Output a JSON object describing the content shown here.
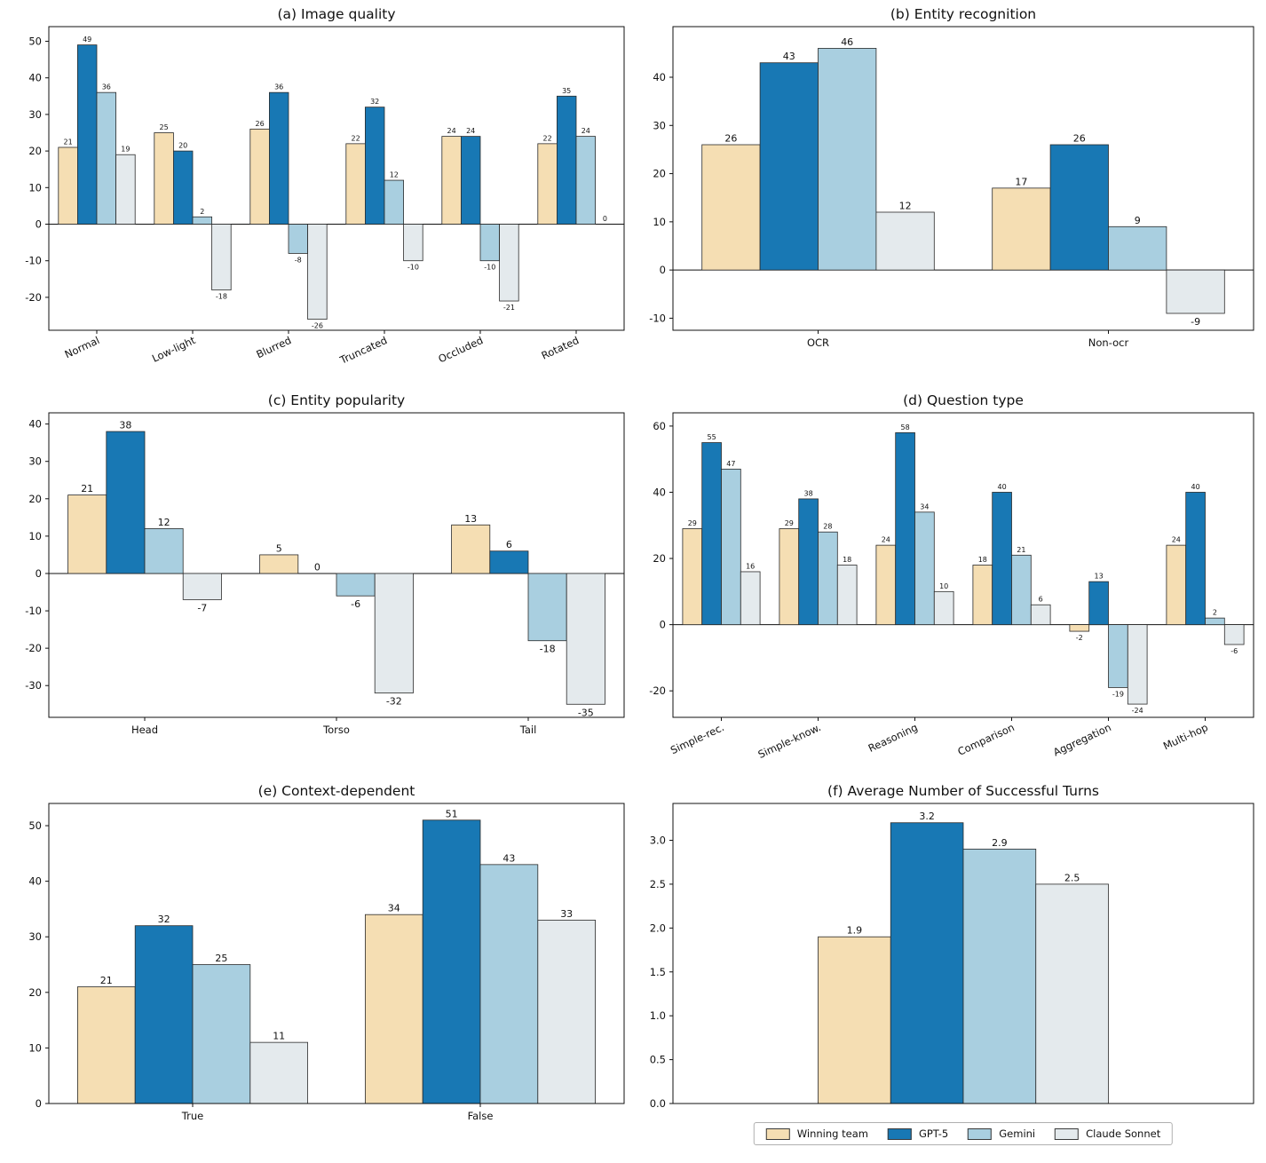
{
  "figure": {
    "background": "#ffffff"
  },
  "legend": {
    "entries": [
      {
        "label": "Winning team",
        "color": "#F5DEB3"
      },
      {
        "label": "GPT-5",
        "color": "#1878B4"
      },
      {
        "label": "Gemini",
        "color": "#A9CFE0"
      },
      {
        "label": "Claude Sonnet",
        "color": "#E4EAED"
      }
    ]
  },
  "chart_data": [
    {
      "id": "a",
      "type": "bar",
      "title": "(a) Image quality",
      "categories": [
        "Normal",
        "Low-light",
        "Blurred",
        "Truncated",
        "Occluded",
        "Rotated"
      ],
      "series": [
        {
          "name": "Winning team",
          "values": [
            21,
            25,
            26,
            22,
            24,
            22
          ]
        },
        {
          "name": "GPT-5",
          "values": [
            49,
            20,
            36,
            32,
            24,
            35
          ]
        },
        {
          "name": "Gemini",
          "values": [
            36,
            2,
            -8,
            12,
            -10,
            24
          ]
        },
        {
          "name": "Claude Sonnet",
          "values": [
            19,
            -18,
            -26,
            -10,
            -21,
            0
          ]
        }
      ],
      "yticks": [
        -20,
        -10,
        0,
        10,
        20,
        30,
        40,
        50
      ],
      "ylim": [
        -29,
        54
      ],
      "ytick_decimals": 0,
      "x_tick_rotation": -25,
      "value_label_size": 8,
      "grid": false,
      "legend_position": "none"
    },
    {
      "id": "b",
      "type": "bar",
      "title": "(b) Entity recognition",
      "categories": [
        "OCR",
        "Non-ocr"
      ],
      "series": [
        {
          "name": "Winning team",
          "values": [
            26,
            17
          ]
        },
        {
          "name": "GPT-5",
          "values": [
            43,
            26
          ]
        },
        {
          "name": "Gemini",
          "values": [
            46,
            9
          ]
        },
        {
          "name": "Claude Sonnet",
          "values": [
            12,
            -9
          ]
        }
      ],
      "yticks": [
        -10,
        0,
        10,
        20,
        30,
        40
      ],
      "ylim": [
        -12.5,
        50.5
      ],
      "ytick_decimals": 0,
      "x_tick_rotation": 0,
      "value_label_size": 11,
      "grid": false,
      "legend_position": "none"
    },
    {
      "id": "c",
      "type": "bar",
      "title": "(c) Entity popularity",
      "categories": [
        "Head",
        "Torso",
        "Tail"
      ],
      "series": [
        {
          "name": "Winning team",
          "values": [
            21,
            5,
            13
          ]
        },
        {
          "name": "GPT-5",
          "values": [
            38,
            0,
            6
          ]
        },
        {
          "name": "Gemini",
          "values": [
            12,
            -6,
            -18
          ]
        },
        {
          "name": "Claude Sonnet",
          "values": [
            -7,
            -32,
            -35
          ]
        }
      ],
      "yticks": [
        -30,
        -20,
        -10,
        0,
        10,
        20,
        30,
        40
      ],
      "ylim": [
        -38.5,
        43
      ],
      "ytick_decimals": 0,
      "x_tick_rotation": 0,
      "value_label_size": 11,
      "grid": false,
      "legend_position": "none"
    },
    {
      "id": "d",
      "type": "bar",
      "title": "(d) Question type",
      "categories": [
        "Simple-rec.",
        "Simple-know.",
        "Reasoning",
        "Comparison",
        "Aggregation",
        "Multi-hop"
      ],
      "series": [
        {
          "name": "Winning team",
          "values": [
            29,
            29,
            24,
            18,
            -2,
            24
          ]
        },
        {
          "name": "GPT-5",
          "values": [
            55,
            38,
            58,
            40,
            13,
            40
          ]
        },
        {
          "name": "Gemini",
          "values": [
            47,
            28,
            34,
            21,
            -19,
            2
          ]
        },
        {
          "name": "Claude Sonnet",
          "values": [
            16,
            18,
            10,
            6,
            -24,
            -6
          ]
        }
      ],
      "yticks": [
        -20,
        0,
        20,
        40,
        60
      ],
      "ylim": [
        -28,
        64
      ],
      "ytick_decimals": 0,
      "x_tick_rotation": -25,
      "value_label_size": 8,
      "grid": false,
      "legend_position": "none"
    },
    {
      "id": "e",
      "type": "bar",
      "title": "(e) Context-dependent",
      "categories": [
        "True",
        "False"
      ],
      "series": [
        {
          "name": "Winning team",
          "values": [
            21,
            34
          ]
        },
        {
          "name": "GPT-5",
          "values": [
            32,
            51
          ]
        },
        {
          "name": "Gemini",
          "values": [
            25,
            43
          ]
        },
        {
          "name": "Claude Sonnet",
          "values": [
            11,
            33
          ]
        }
      ],
      "yticks": [
        0,
        10,
        20,
        30,
        40,
        50
      ],
      "ylim": [
        0,
        54
      ],
      "ytick_decimals": 0,
      "x_tick_rotation": 0,
      "value_label_size": 11,
      "grid": false,
      "legend_position": "none"
    },
    {
      "id": "f",
      "type": "bar",
      "title": "(f) Average Number of Successful Turns",
      "categories": [
        ""
      ],
      "series": [
        {
          "name": "Winning team",
          "values": [
            1.9
          ]
        },
        {
          "name": "GPT-5",
          "values": [
            3.2
          ]
        },
        {
          "name": "Gemini",
          "values": [
            2.9
          ]
        },
        {
          "name": "Claude Sonnet",
          "values": [
            2.5
          ]
        }
      ],
      "yticks": [
        0,
        0.5,
        1.0,
        1.5,
        2.0,
        2.5,
        3.0
      ],
      "ylim": [
        0,
        3.42
      ],
      "ytick_decimals": 1,
      "x_tick_rotation": 0,
      "value_label_size": 11,
      "group_width_fraction": 0.5,
      "grid": false,
      "legend_position": "bottom"
    }
  ]
}
